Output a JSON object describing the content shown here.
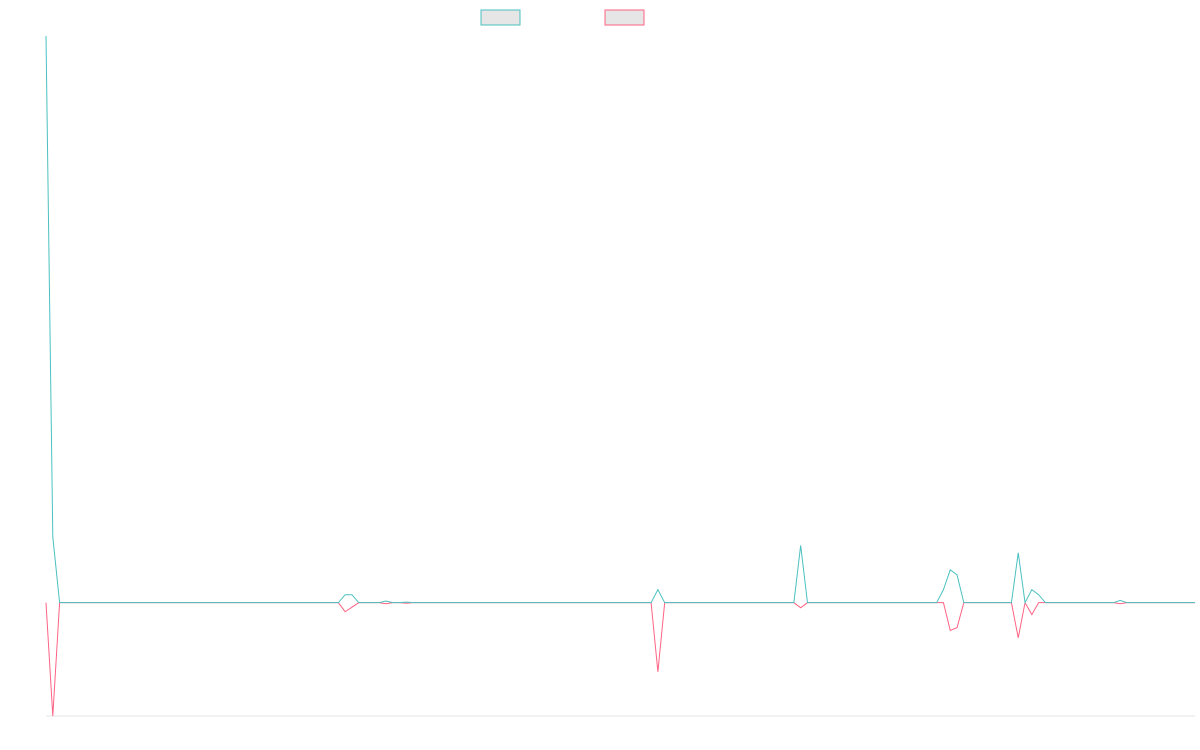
{
  "chart_data": {
    "type": "line",
    "ylim": [
      -20,
      100
    ],
    "legend": "top",
    "series": [
      {
        "color": "#4bc0c0",
        "values": [
          100,
          11.6,
          0,
          0,
          0,
          0,
          0,
          0,
          0,
          0,
          0,
          0,
          0,
          0,
          0,
          0,
          0,
          0,
          0,
          0,
          0,
          0,
          0,
          0,
          0,
          0,
          0,
          0,
          0,
          0,
          0,
          0,
          0,
          0,
          0,
          0,
          0,
          0,
          0,
          0,
          0,
          0,
          0,
          0,
          1.4,
          1.4,
          0,
          0,
          0,
          0,
          0.3,
          0,
          0,
          0.1,
          0,
          0,
          0,
          0,
          0,
          0,
          0,
          0,
          0,
          0,
          0,
          0,
          0,
          0,
          0,
          0,
          0,
          0,
          0,
          0,
          0,
          0,
          0,
          0,
          0,
          0,
          0,
          0,
          0,
          0,
          0,
          0,
          0,
          0,
          0,
          0,
          2.3,
          0,
          0,
          0,
          0,
          0,
          0,
          0,
          0,
          0,
          0,
          0,
          0,
          0,
          0,
          0,
          0,
          0,
          0,
          0,
          0,
          10.1,
          0,
          0,
          0,
          0,
          0,
          0,
          0,
          0,
          0,
          0,
          0,
          0,
          0,
          0,
          0,
          0,
          0,
          0,
          0,
          0,
          2.3,
          5.8,
          4.9,
          0,
          0,
          0,
          0,
          0,
          0,
          0,
          0,
          8.8,
          0,
          2.3,
          1.4,
          0,
          0,
          0,
          0,
          0,
          0,
          0,
          0,
          0,
          0,
          0,
          0.4,
          0,
          0,
          0,
          0,
          0,
          0,
          0,
          0,
          0,
          0,
          0
        ]
      },
      {
        "color": "#ff6384",
        "values": [
          0,
          -20,
          0,
          0,
          0,
          0,
          0,
          0,
          0,
          0,
          0,
          0,
          0,
          0,
          0,
          0,
          0,
          0,
          0,
          0,
          0,
          0,
          0,
          0,
          0,
          0,
          0,
          0,
          0,
          0,
          0,
          0,
          0,
          0,
          0,
          0,
          0,
          0,
          0,
          0,
          0,
          0,
          0,
          0,
          -1.6,
          -0.8,
          0,
          0,
          0,
          0,
          -0.2,
          0,
          0,
          -0.1,
          0,
          0,
          0,
          0,
          0,
          0,
          0,
          0,
          0,
          0,
          0,
          0,
          0,
          0,
          0,
          0,
          0,
          0,
          0,
          0,
          0,
          0,
          0,
          0,
          0,
          0,
          0,
          0,
          0,
          0,
          0,
          0,
          0,
          0,
          0,
          0,
          -12.2,
          0,
          0,
          0,
          0,
          0,
          0,
          0,
          0,
          0,
          0,
          0,
          0,
          0,
          0,
          0,
          0,
          0,
          0,
          0,
          0,
          -0.9,
          0,
          0,
          0,
          0,
          0,
          0,
          0,
          0,
          0,
          0,
          0,
          0,
          0,
          0,
          0,
          0,
          0,
          0,
          0,
          0,
          0,
          -4.9,
          -4.4,
          0,
          0,
          0,
          0,
          0,
          0,
          0,
          0,
          -6.2,
          0,
          -2.1,
          0,
          0,
          0,
          0,
          0,
          0,
          0,
          0,
          0,
          0,
          0,
          0,
          -0.2,
          0,
          0,
          0,
          0,
          0,
          0,
          0,
          0,
          0,
          0,
          0
        ]
      }
    ]
  }
}
